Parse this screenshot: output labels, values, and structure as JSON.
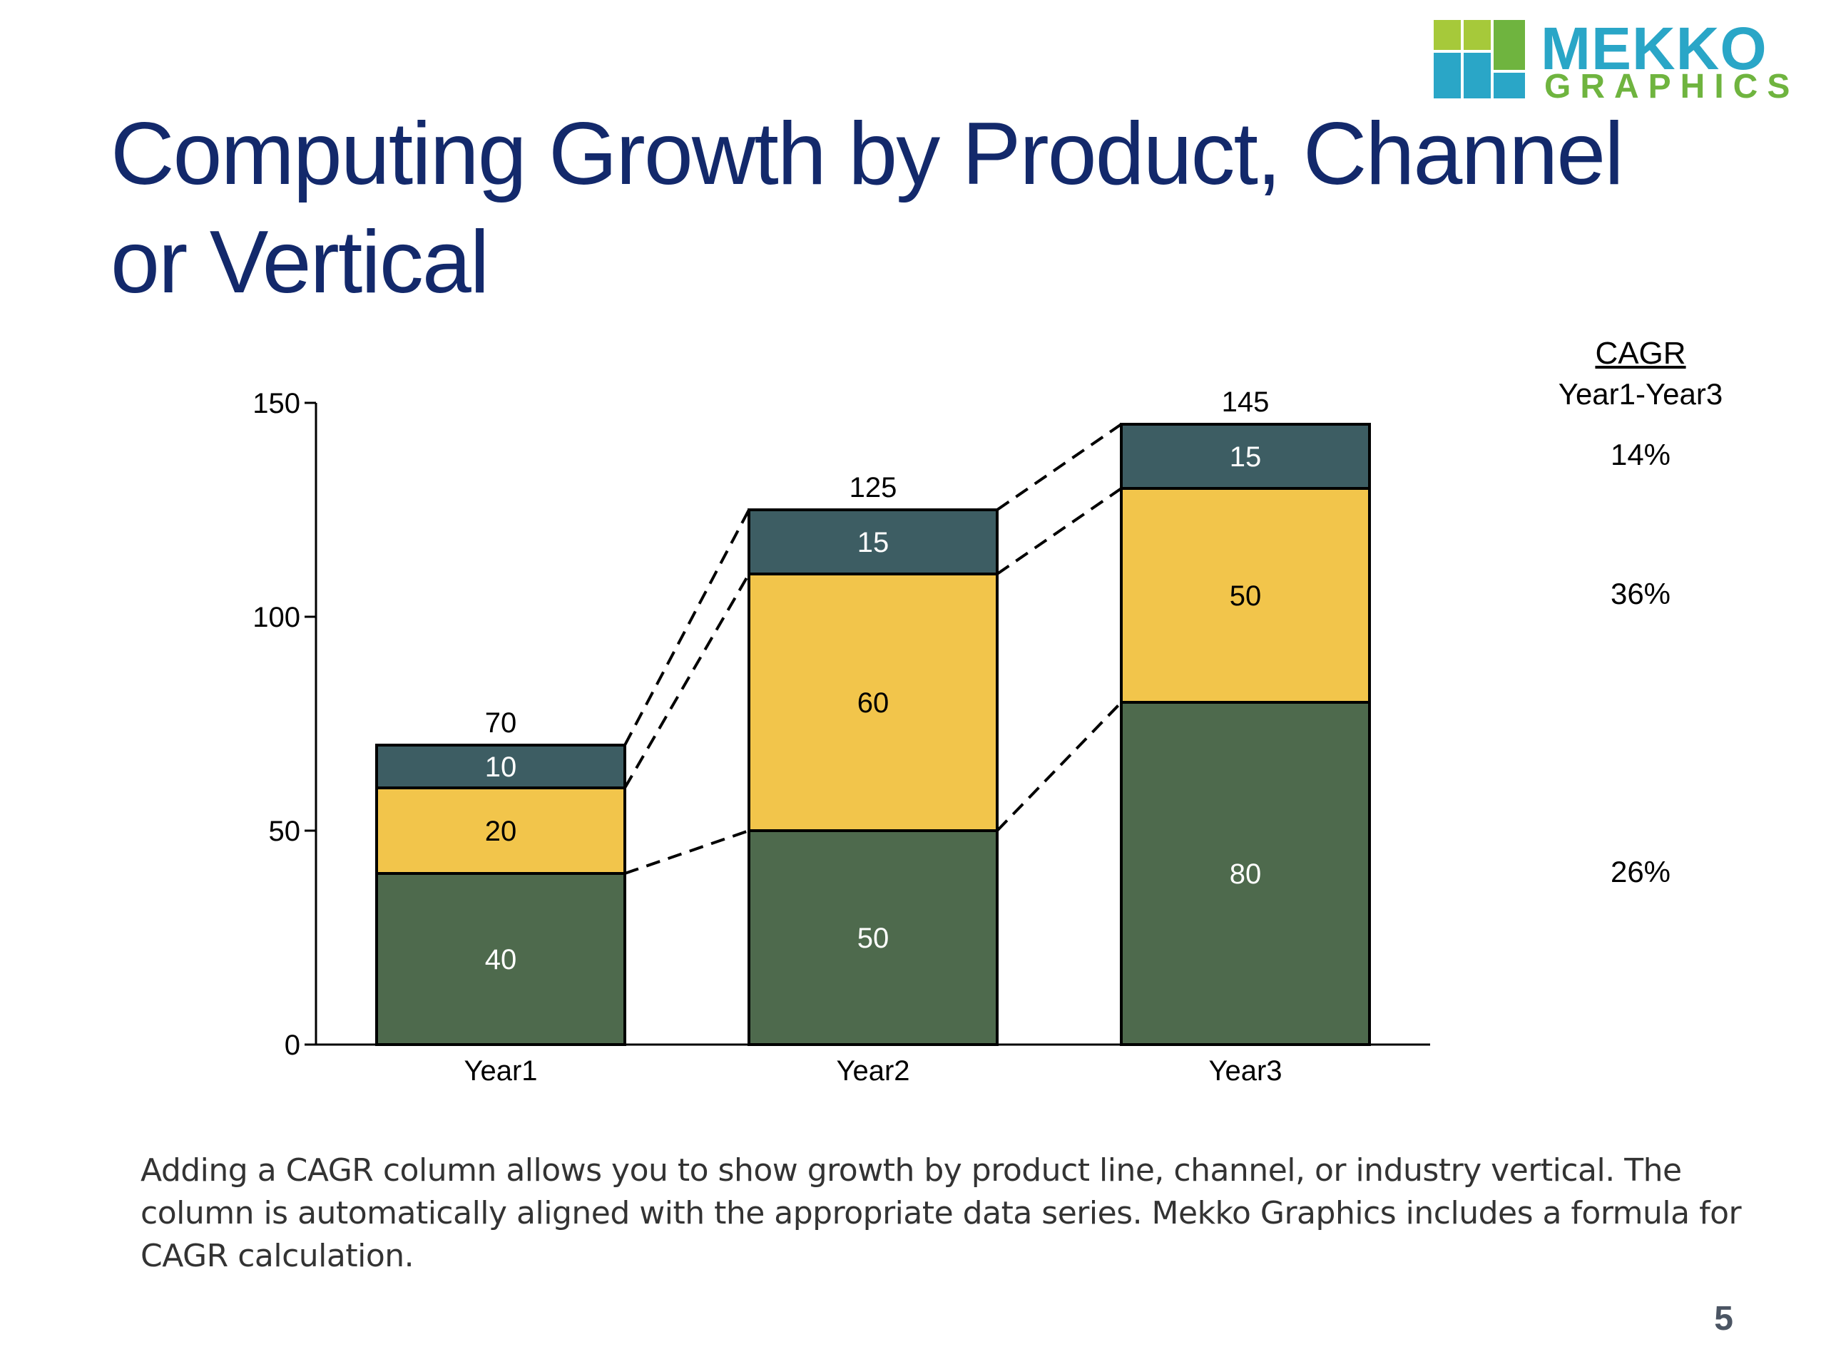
{
  "logo": {
    "word1": "MEKKO",
    "word2": "GRAPHICS",
    "colors": {
      "blue": "#2aa6c7",
      "green": "#6fb43f",
      "lime": "#a6c93a"
    }
  },
  "slide": {
    "title": "Computing Growth by Product, Channel or Vertical",
    "note": "Adding a CAGR column allows you to show growth by product line, channel, or industry vertical.  The column is automatically aligned with the appropriate data series.  Mekko Graphics includes a formula for CAGR calculation.",
    "page_number": "5"
  },
  "cagr": {
    "title": "CAGR",
    "subtitle": "Year1-Year3",
    "values": [
      "14%",
      "36%",
      "26%"
    ]
  },
  "chart_data": {
    "type": "bar",
    "stacked": true,
    "categories": [
      "Year1",
      "Year2",
      "Year3"
    ],
    "series": [
      {
        "values": [
          40,
          50,
          80
        ],
        "color": "#4e6a4d",
        "label_color": "#ffffff"
      },
      {
        "values": [
          20,
          60,
          50
        ],
        "color": "#f2c54b",
        "label_color": "#000000"
      },
      {
        "values": [
          10,
          15,
          15
        ],
        "color": "#3d5d63",
        "label_color": "#ffffff"
      }
    ],
    "totals": [
      70,
      125,
      145
    ],
    "ylim": [
      0,
      150
    ],
    "yticks": [
      0,
      50,
      100,
      150
    ],
    "connector_lines": "dashed"
  }
}
